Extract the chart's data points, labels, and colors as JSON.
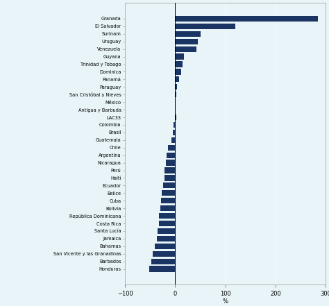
{
  "categories": [
    "Granada",
    "El Salvador",
    "Surinam",
    "Uruguay",
    "Venezuela",
    "Guyana",
    "Trinidad y Tobago",
    "Dominica",
    "Panamá",
    "Paraguay",
    "San Cristóbal y Nieves",
    "México",
    "Antigua y Barbuda",
    "LAC33",
    "Colombia",
    "Brasil",
    "Guatemala",
    "Chile",
    "Argentina",
    "Nicaragua",
    "Perú",
    "Haití",
    "Ecuador",
    "Belice",
    "Cuba",
    "Bolivia",
    "República Dominicana",
    "Costa Rica",
    "Santa Lucía",
    "Jamaica",
    "Bahamas",
    "San Vicente y las Granadinas",
    "Barbados",
    "Honduras"
  ],
  "values": [
    285,
    120,
    50,
    45,
    42,
    18,
    15,
    12,
    8,
    4,
    2,
    1,
    0.5,
    2,
    -4,
    -5,
    -7,
    -15,
    -17,
    -19,
    -22,
    -22,
    -24,
    -27,
    -28,
    -30,
    -32,
    -33,
    -35,
    -37,
    -40,
    -45,
    -48,
    -52
  ],
  "bar_color": "#1a3464",
  "lac33_color": "#222222",
  "background_color": "#e8f4f8",
  "xlim": [
    -100,
    300
  ],
  "xticks": [
    -100,
    0,
    100,
    200,
    300
  ],
  "xlabel": "%",
  "figsize": [
    4.74,
    4.41
  ],
  "dpi": 100,
  "bar_height": 0.75,
  "ytick_fontsize": 4.8,
  "xtick_fontsize": 6.0
}
